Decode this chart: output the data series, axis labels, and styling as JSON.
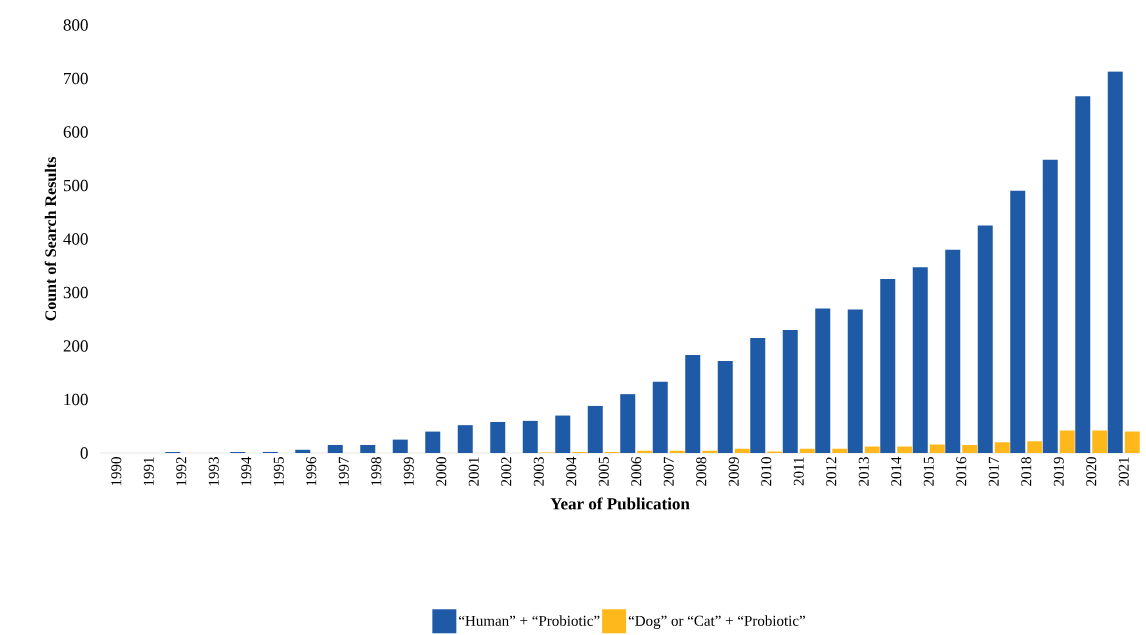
{
  "chart_data": {
    "type": "bar",
    "xlabel": "Year of Publication",
    "ylabel": "Count of Search Results",
    "categories": [
      "1990",
      "1991",
      "1992",
      "1993",
      "1994",
      "1995",
      "1996",
      "1997",
      "1998",
      "1999",
      "2000",
      "2001",
      "2002",
      "2003",
      "2004",
      "2005",
      "2006",
      "2007",
      "2008",
      "2009",
      "2010",
      "2011",
      "2012",
      "2013",
      "2014",
      "2015",
      "2016",
      "2017",
      "2018",
      "2019",
      "2020",
      "2021"
    ],
    "series": [
      {
        "name": "“Human” + “Probiotic”",
        "color": "#1f5aa6",
        "values": [
          0,
          0,
          2,
          0,
          2,
          2,
          6,
          15,
          15,
          25,
          40,
          52,
          58,
          60,
          70,
          88,
          110,
          133,
          183,
          172,
          215,
          230,
          270,
          268,
          325,
          347,
          380,
          425,
          490,
          548,
          667,
          713
        ]
      },
      {
        "name": "“Dog” or “Cat” + “Probiotic”",
        "color": "#ffb81c",
        "values": [
          0,
          0,
          0,
          0,
          0,
          0,
          0,
          0,
          0,
          0,
          0,
          0,
          0,
          1,
          2,
          2,
          4,
          4,
          4,
          8,
          3,
          8,
          8,
          12,
          12,
          16,
          15,
          20,
          22,
          42,
          42,
          40
        ]
      }
    ],
    "ylim": [
      0,
      800
    ],
    "yticks": [
      0,
      100,
      200,
      300,
      400,
      500,
      600,
      700,
      800
    ],
    "legend": "bottom"
  }
}
